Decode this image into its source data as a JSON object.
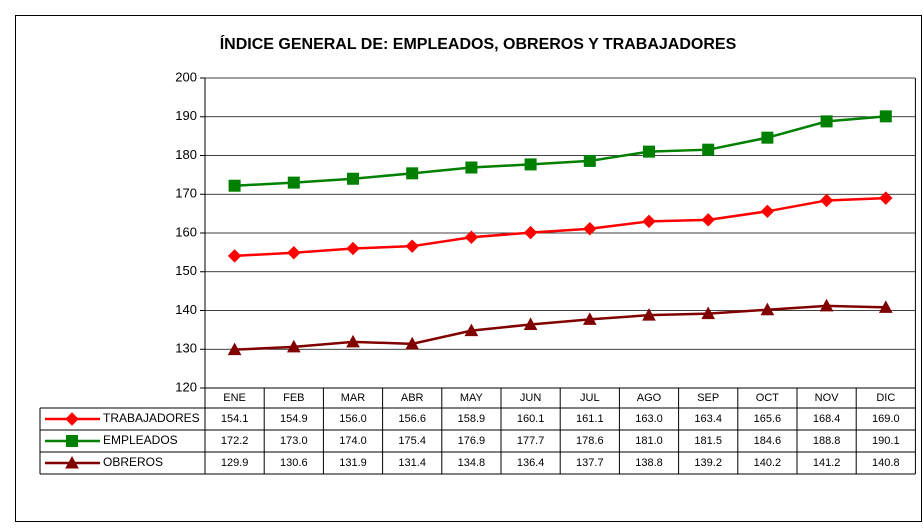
{
  "chart_data": {
    "type": "line",
    "title": "ÍNDICE GENERAL DE: EMPLEADOS, OBREROS Y TRABAJADORES",
    "categories": [
      "ENE",
      "FEB",
      "MAR",
      "ABR",
      "MAY",
      "JUN",
      "JUL",
      "AGO",
      "SEP",
      "OCT",
      "NOV",
      "DIC"
    ],
    "ylim": [
      120,
      200
    ],
    "yticks": [
      120,
      130,
      140,
      150,
      160,
      170,
      180,
      190,
      200
    ],
    "grid": true,
    "series": [
      {
        "name": "TRABAJADORES",
        "color": "#ff0000",
        "marker": "diamond",
        "values": [
          154.1,
          154.9,
          156.0,
          156.6,
          158.9,
          160.1,
          161.1,
          163.0,
          163.4,
          165.6,
          168.4,
          169.0
        ],
        "value_labels": [
          "154.1",
          "154.9",
          "156.0",
          "156.6",
          "158.9",
          "160.1",
          "161.1",
          "163.0",
          "163.4",
          "165.6",
          "168.4",
          "169.0"
        ]
      },
      {
        "name": "EMPLEADOS",
        "color": "#008000",
        "marker": "square",
        "values": [
          172.2,
          173.0,
          174.0,
          175.4,
          176.9,
          177.7,
          178.6,
          181.0,
          181.5,
          184.6,
          188.8,
          190.1
        ],
        "value_labels": [
          "172.2",
          "173.0",
          "174.0",
          "175.4",
          "176.9",
          "177.7",
          "178.6",
          "181.0",
          "181.5",
          "184.6",
          "188.8",
          "190.1"
        ]
      },
      {
        "name": "OBREROS",
        "color": "#800000",
        "marker": "triangle",
        "values": [
          129.9,
          130.6,
          131.9,
          131.4,
          134.8,
          136.4,
          137.7,
          138.8,
          139.2,
          140.2,
          141.2,
          140.8
        ],
        "value_labels": [
          "129.9",
          "130.6",
          "131.9",
          "131.4",
          "134.8",
          "136.4",
          "137.7",
          "138.8",
          "139.2",
          "140.2",
          "141.2",
          "140.8"
        ]
      }
    ]
  }
}
